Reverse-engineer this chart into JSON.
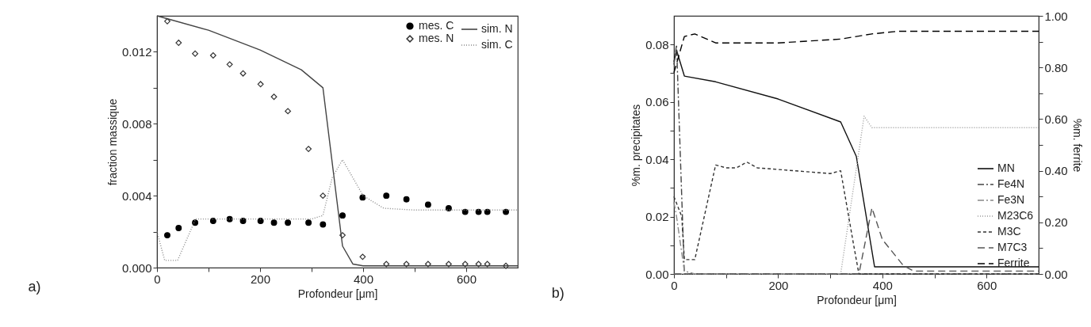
{
  "chart_data": [
    {
      "type": "line",
      "xlabel": "Profondeur [μm]",
      "ylabel": "fraction massique",
      "annotations": [
        "a)"
      ],
      "legend": "top right",
      "grid": false,
      "xlim": [
        0,
        700
      ],
      "ylim": [
        0,
        0.014
      ],
      "xticks": [
        0,
        {
          "value": 100,
          "label": null
        },
        200,
        {
          "value": 300,
          "label": null
        },
        400,
        {
          "value": 500,
          "label": null
        },
        600
      ],
      "yticks": [
        {
          "value": 0,
          "label": "0.000"
        },
        {
          "value": 0.002,
          "label": null
        },
        0.004,
        {
          "value": 0.006,
          "label": null
        },
        0.008,
        {
          "value": 0.01,
          "label": null
        },
        0.012
      ],
      "series": [
        {
          "name": "mes. C",
          "type": "scatter",
          "marker": "circle",
          "color": "#000000",
          "x": [
            20,
            42,
            74,
            109,
            141,
            167,
            201,
            227,
            254,
            294,
            322,
            360,
            399,
            445,
            484,
            526,
            566,
            598,
            624,
            641,
            677
          ],
          "values": [
            0.0018,
            0.0022,
            0.0025,
            0.0026,
            0.0027,
            0.0026,
            0.0026,
            0.0025,
            0.0025,
            0.0025,
            0.0024,
            0.0029,
            0.0039,
            0.004,
            0.0038,
            0.0035,
            0.0033,
            0.0031,
            0.0031,
            0.0031,
            0.0031
          ]
        },
        {
          "name": "mes. N",
          "type": "scatter",
          "marker": "diamond",
          "color": "#333333",
          "x": [
            20,
            42,
            74,
            109,
            141,
            167,
            201,
            227,
            254,
            294,
            322,
            360,
            399,
            445,
            484,
            526,
            566,
            598,
            624,
            641,
            677
          ],
          "values": [
            0.0137,
            0.0125,
            0.0119,
            0.0118,
            0.0113,
            0.0108,
            0.0102,
            0.0095,
            0.0087,
            0.0066,
            0.004,
            0.0018,
            0.0006,
            0.0002,
            0.0002,
            0.0002,
            0.0002,
            0.0002,
            0.0002,
            0.0002,
            0.0001
          ]
        },
        {
          "name": "sim. N",
          "line_style": "solid",
          "color": "#444444",
          "x": [
            0,
            100,
            200,
            280,
            322,
            360,
            380,
            400,
            700
          ],
          "values": [
            0.014,
            0.0132,
            0.0121,
            0.011,
            0.01,
            0.0012,
            0.0002,
            0.0001,
            0.0001
          ]
        },
        {
          "name": "sim. C",
          "line_style": "dotted",
          "color": "#888888",
          "x": [
            0,
            15,
            40,
            75,
            300,
            322,
            340,
            360,
            400,
            440,
            500,
            700
          ],
          "values": [
            0.002,
            0.0004,
            0.0004,
            0.0027,
            0.0027,
            0.0029,
            0.005,
            0.006,
            0.004,
            0.0033,
            0.0032,
            0.0032
          ]
        }
      ]
    },
    {
      "type": "line",
      "xlabel": "Profondeur [μm]",
      "ylabel": "%m. precipitates",
      "y2label": "%m. ferrite",
      "annotations": [
        "b)"
      ],
      "legend": "bottom right",
      "grid": false,
      "xlim": [
        0,
        700
      ],
      "ylim": [
        0,
        0.09
      ],
      "y2lim": [
        0,
        1
      ],
      "xticks": [
        0,
        {
          "value": 100,
          "label": null
        },
        200,
        {
          "value": 300,
          "label": null
        },
        400,
        {
          "value": 500,
          "label": null
        },
        600
      ],
      "yticks": [
        {
          "value": 0,
          "label": "0.00"
        },
        {
          "value": 0.01,
          "label": null
        },
        0.02,
        {
          "value": 0.03,
          "label": null
        },
        0.04,
        {
          "value": 0.05,
          "label": null
        },
        0.06,
        {
          "value": 0.07,
          "label": null
        },
        0.08
      ],
      "y2ticks": [
        {
          "value": 0,
          "label": "0.00"
        },
        {
          "value": 0.1,
          "label": null
        },
        {
          "value": 0.2,
          "label": "0.20"
        },
        {
          "value": 0.3,
          "label": null
        },
        {
          "value": 0.4,
          "label": "0.40"
        },
        {
          "value": 0.5,
          "label": null
        },
        {
          "value": 0.6,
          "label": "0.60"
        },
        {
          "value": 0.7,
          "label": null
        },
        {
          "value": 0.8,
          "label": "0.80"
        },
        {
          "value": 0.9,
          "label": null
        },
        {
          "value": 1,
          "label": "1.00"
        }
      ],
      "series": [
        {
          "name": "MN",
          "line_style": "solid",
          "color": "#111111",
          "x": [
            0,
            5,
            20,
            80,
            200,
            320,
            350,
            385,
            700
          ],
          "values": [
            0.074,
            0.078,
            0.069,
            0.067,
            0.061,
            0.053,
            0.041,
            0.0025,
            0.0025
          ]
        },
        {
          "name": "Fe4N",
          "line_style": "dashdot",
          "color": "#444444",
          "x": [
            0,
            5,
            20,
            40,
            700
          ],
          "values": [
            0.073,
            0.08,
            0.0,
            0.0,
            0.0
          ]
        },
        {
          "name": "Fe3N",
          "line_style": "dashdot",
          "color": "#888888",
          "x": [
            0,
            5,
            20,
            40,
            700
          ],
          "values": [
            0.025,
            0.02,
            0.001,
            0.0,
            0.0
          ]
        },
        {
          "name": "M23C6",
          "line_style": "dotted",
          "color": "#999999",
          "x": [
            0,
            320,
            365,
            380,
            700
          ],
          "values": [
            0.0,
            0.0,
            0.055,
            0.051,
            0.051
          ]
        },
        {
          "name": "M3C",
          "line_style": "dashed",
          "color": "#333333",
          "x": [
            0,
            15,
            20,
            40,
            80,
            100,
            120,
            140,
            160,
            300,
            320,
            345,
            355,
            700
          ],
          "values": [
            0.027,
            0.02,
            0.005,
            0.005,
            0.038,
            0.037,
            0.037,
            0.039,
            0.037,
            0.035,
            0.036,
            0.01,
            0.0,
            0.0
          ]
        },
        {
          "name": "M7C3",
          "line_style": "longdashed",
          "color": "#555555",
          "x": [
            0,
            355,
            380,
            400,
            440,
            460,
            700
          ],
          "values": [
            0.0,
            0.0,
            0.023,
            0.012,
            0.003,
            0.001,
            0.001
          ]
        },
        {
          "name": "Ferrite",
          "line_style": "longdashed",
          "axis": "y2",
          "color": "#000000",
          "x": [
            0,
            20,
            40,
            80,
            200,
            320,
            380,
            430,
            700
          ],
          "values": [
            0.78,
            0.92,
            0.93,
            0.895,
            0.895,
            0.91,
            0.93,
            0.94,
            0.94
          ]
        }
      ]
    }
  ]
}
